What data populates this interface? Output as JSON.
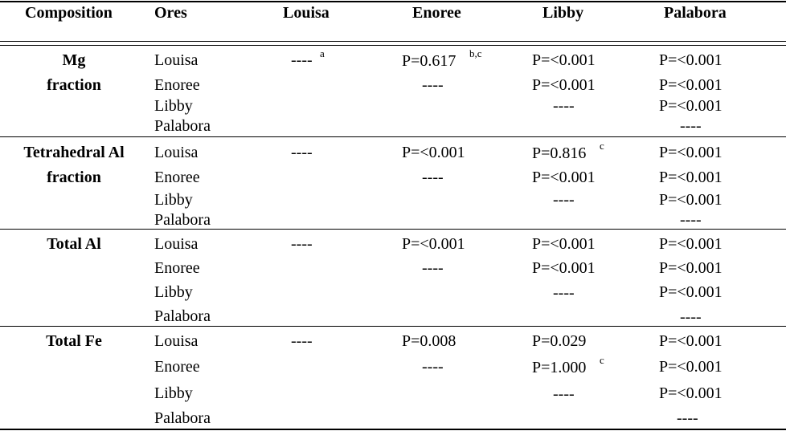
{
  "headers": [
    "Composition",
    "Ores",
    "Louisa",
    "Enoree",
    "Libby",
    "Palabora"
  ],
  "groups": [
    {
      "composition": [
        "Mg",
        "fraction"
      ],
      "rows": [
        {
          "ore": "Louisa",
          "louisa": "----",
          "louisa_sup": "a",
          "enoree": "P=0.617",
          "enoree_sup": "b,c",
          "libby": "P=<0.001",
          "palabora": "P=<0.001"
        },
        {
          "ore": "Enoree",
          "enoree": "----",
          "libby": "P=<0.001",
          "palabora": "P=<0.001"
        },
        {
          "ore": "Libby",
          "libby": "----",
          "palabora": "P=<0.001"
        },
        {
          "ore": "Palabora",
          "palabora": "----"
        }
      ]
    },
    {
      "composition": [
        "Tetrahedral Al",
        "fraction"
      ],
      "rows": [
        {
          "ore": "Louisa",
          "louisa": "----",
          "enoree": "P=<0.001",
          "libby": "P=0.816",
          "libby_sup": "c",
          "palabora": "P=<0.001"
        },
        {
          "ore": "Enoree",
          "enoree": "----",
          "libby": "P=<0.001",
          "palabora": "P=<0.001"
        },
        {
          "ore": "Libby",
          "libby": "----",
          "palabora": "P=<0.001"
        },
        {
          "ore": "Palabora",
          "palabora": "----"
        }
      ]
    },
    {
      "composition": [
        "Total Al"
      ],
      "rows": [
        {
          "ore": "Louisa",
          "louisa": "----",
          "enoree": "P=<0.001",
          "libby": "P=<0.001",
          "palabora": "P=<0.001"
        },
        {
          "ore": "Enoree",
          "enoree": "----",
          "libby": "P=<0.001",
          "palabora": "P=<0.001"
        },
        {
          "ore": "Libby",
          "libby": "----",
          "palabora": "P=<0.001"
        },
        {
          "ore": "Palabora",
          "palabora": "----"
        }
      ]
    },
    {
      "composition": [
        "Total Fe"
      ],
      "rows": [
        {
          "ore": "Louisa",
          "louisa": "----",
          "enoree": "P=0.008",
          "libby": "P=0.029",
          "palabora": "P=<0.001"
        },
        {
          "ore": "Enoree",
          "enoree": "----",
          "libby": "P=1.000",
          "libby_sup": "c",
          "palabora": "P=<0.001"
        },
        {
          "ore": "Libby",
          "libby": "----",
          "palabora": "P=<0.001"
        },
        {
          "ore": "Palabora",
          "palabora": "----"
        }
      ]
    }
  ]
}
